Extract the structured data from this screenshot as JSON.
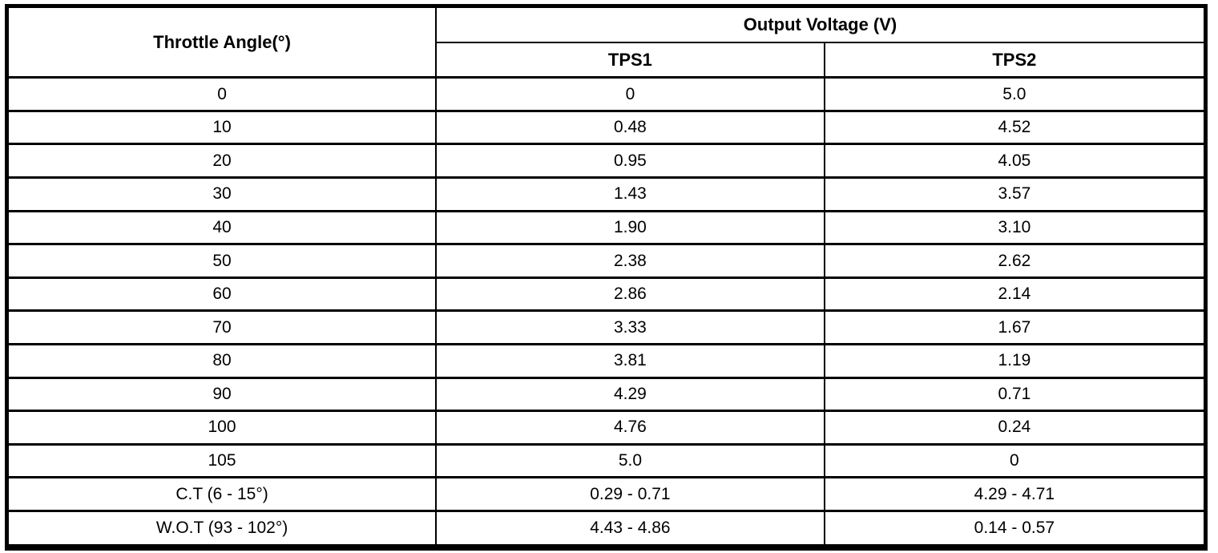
{
  "table": {
    "header": {
      "throttle_angle": "Throttle Angle(°)",
      "output_voltage": "Output Voltage (V)",
      "tps1": "TPS1",
      "tps2": "TPS2"
    },
    "rows": [
      {
        "angle": "0",
        "tps1": "0",
        "tps2": "5.0"
      },
      {
        "angle": "10",
        "tps1": "0.48",
        "tps2": "4.52"
      },
      {
        "angle": "20",
        "tps1": "0.95",
        "tps2": "4.05"
      },
      {
        "angle": "30",
        "tps1": "1.43",
        "tps2": "3.57"
      },
      {
        "angle": "40",
        "tps1": "1.90",
        "tps2": "3.10"
      },
      {
        "angle": "50",
        "tps1": "2.38",
        "tps2": "2.62"
      },
      {
        "angle": "60",
        "tps1": "2.86",
        "tps2": "2.14"
      },
      {
        "angle": "70",
        "tps1": "3.33",
        "tps2": "1.67"
      },
      {
        "angle": "80",
        "tps1": "3.81",
        "tps2": "1.19"
      },
      {
        "angle": "90",
        "tps1": "4.29",
        "tps2": "0.71"
      },
      {
        "angle": "100",
        "tps1": "4.76",
        "tps2": "0.24"
      },
      {
        "angle": "105",
        "tps1": "5.0",
        "tps2": "0"
      },
      {
        "angle": "C.T (6 - 15°)",
        "tps1": "0.29 - 0.71",
        "tps2": "4.29 - 4.71"
      },
      {
        "angle": "W.O.T (93 - 102°)",
        "tps1": "4.43 - 4.86",
        "tps2": "0.14 - 0.57"
      }
    ]
  },
  "colors": {
    "border": "#000000",
    "background": "#ffffff",
    "text": "#000000"
  }
}
